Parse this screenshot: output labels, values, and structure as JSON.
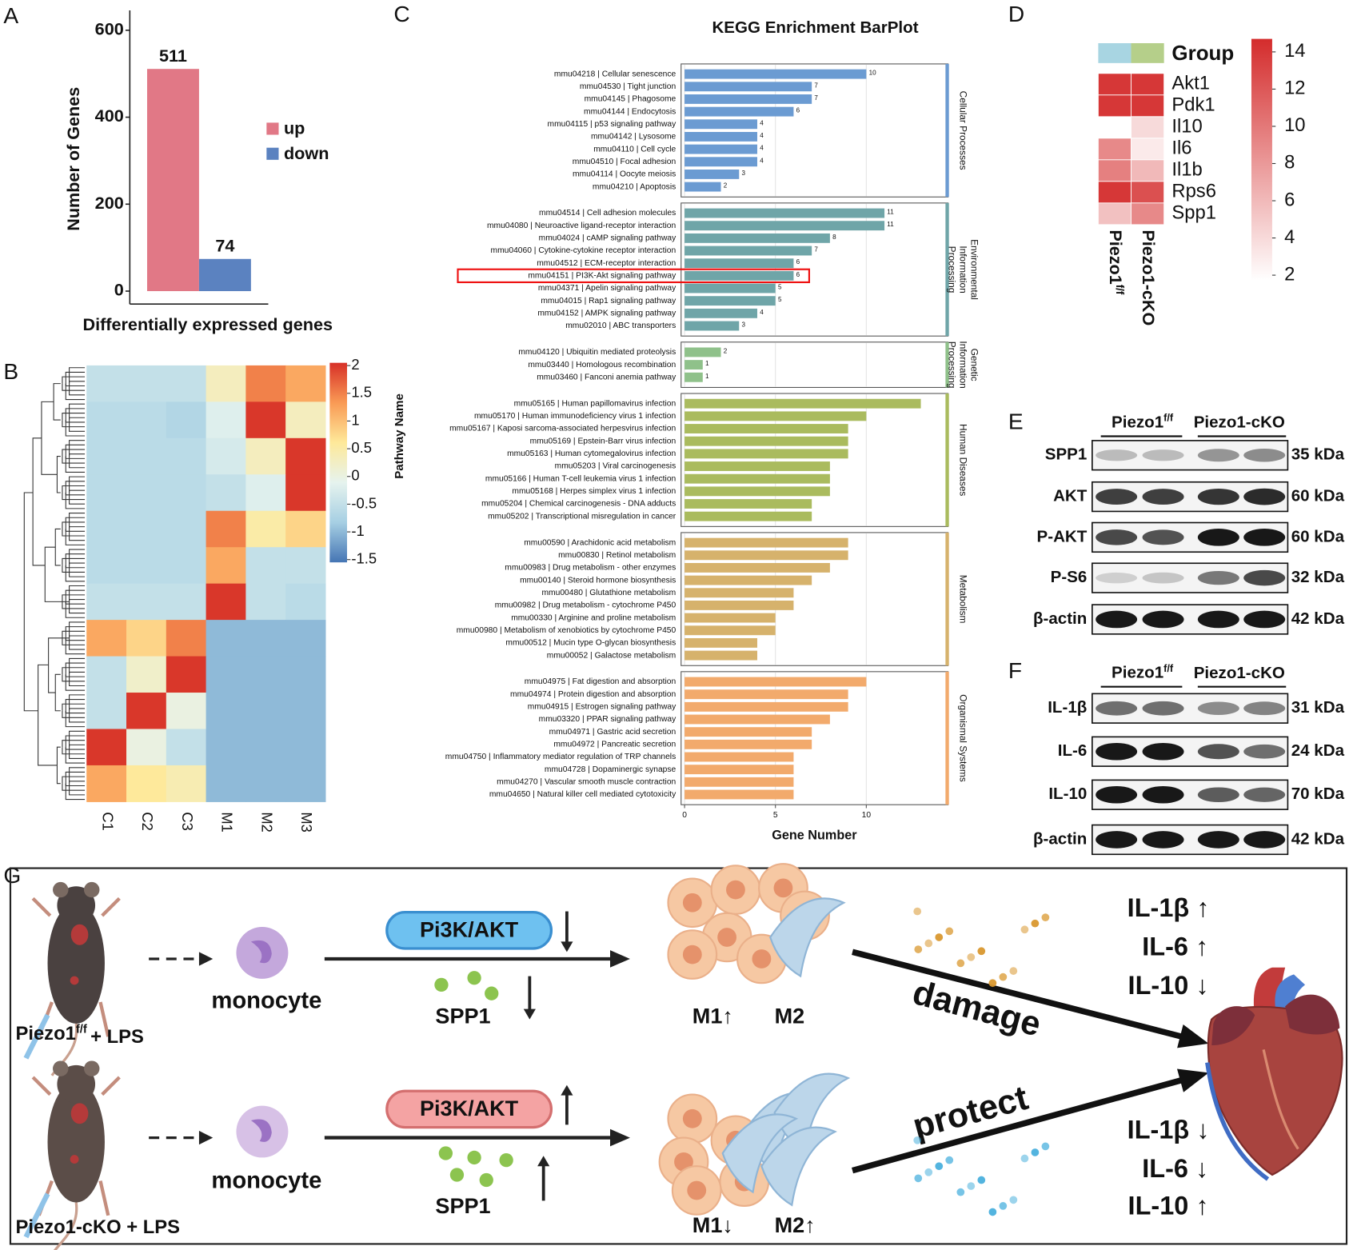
{
  "panel_letters": [
    "A",
    "B",
    "C",
    "D",
    "E",
    "F",
    "G"
  ],
  "chart_data": [
    {
      "type": "bar",
      "y_label": "Number of Genes",
      "x_label": "Differentially expressed genes",
      "categories": [
        "up",
        "down"
      ],
      "values": [
        511,
        74
      ],
      "colors": [
        "#e17886",
        "#5b82c0"
      ],
      "ylim": [
        0,
        600
      ],
      "yticks": [
        0,
        200,
        400,
        600
      ],
      "legend": "right"
    },
    {
      "type": "heatmap",
      "columns": [
        "C1",
        "C2",
        "C3",
        "M1",
        "M2",
        "M3"
      ],
      "values": [
        [
          -0.5,
          -0.5,
          -0.5,
          0.3,
          1.5,
          1.2
        ],
        [
          -0.6,
          -0.6,
          -0.7,
          -0.2,
          2,
          0.3
        ],
        [
          -0.6,
          -0.6,
          -0.6,
          -0.3,
          0.3,
          2
        ],
        [
          -0.6,
          -0.6,
          -0.6,
          -0.5,
          -0.2,
          2
        ],
        [
          -0.6,
          -0.6,
          -0.6,
          1.5,
          0.5,
          0.8
        ],
        [
          -0.6,
          -0.6,
          -0.6,
          1.2,
          -0.5,
          -0.5
        ],
        [
          -0.5,
          -0.5,
          -0.5,
          2,
          -0.5,
          -0.6
        ],
        [
          1.2,
          0.8,
          1.5,
          -1,
          -1,
          -1
        ],
        [
          -0.5,
          0.2,
          2,
          -1,
          -1,
          -1
        ],
        [
          -0.5,
          2,
          0,
          -1,
          -1,
          -1
        ],
        [
          2,
          0,
          -0.5,
          -1,
          -1,
          -1
        ],
        [
          1.2,
          0.6,
          0.4,
          -1,
          -1,
          -1
        ]
      ],
      "clim": [
        -1.55,
        2.05
      ],
      "cticks": [
        2,
        1.5,
        1,
        0.5,
        0,
        -0.5,
        -1,
        -1.5
      ],
      "colormap": [
        "#4575b4",
        "#a6cfe3",
        "#e6f3ee",
        "#fee99a",
        "#f99a55",
        "#d73027"
      ],
      "dendrogram": true
    },
    {
      "type": "hbar",
      "title": "KEGG Enrichment BarPlot",
      "x_label": "Gene Number",
      "y_label": "Pathway Name",
      "xlim": [
        0,
        14.5
      ],
      "xticks": [
        0,
        5,
        10
      ],
      "grid": true,
      "groups": [
        {
          "label_lines": [
            "Cellular Processes"
          ],
          "color": "#6b9bd2",
          "data_labels": true,
          "categories": [
            "mmu04218 | Cellular senescence",
            "mmu04530 | Tight junction",
            "mmu04145 | Phagosome",
            "mmu04144 | Endocytosis",
            "mmu04115 | p53 signaling pathway",
            "mmu04142 | Lysosome",
            "mmu04110 | Cell cycle",
            "mmu04510 | Focal adhesion",
            "mmu04114 | Oocyte meiosis",
            "mmu04210 | Apoptosis"
          ],
          "values": [
            10,
            7,
            7,
            6,
            4,
            4,
            4,
            4,
            3,
            2
          ]
        },
        {
          "label_lines": [
            "Environmental",
            "Information",
            "Processing"
          ],
          "color": "#6fa5a8",
          "data_labels": true,
          "highlight_index": 5,
          "categories": [
            "mmu04514 | Cell adhesion molecules",
            "mmu04080 | Neuroactive ligand-receptor interaction",
            "mmu04024 | cAMP signaling pathway",
            "mmu04060 | Cytokine-cytokine receptor interaction",
            "mmu04512 | ECM-receptor interaction",
            "mmu04151 | PI3K-Akt signaling pathway",
            "mmu04371 | Apelin signaling pathway",
            "mmu04015 | Rap1 signaling pathway",
            "mmu04152 | AMPK signaling pathway",
            "mmu02010 | ABC transporters"
          ],
          "values": [
            11,
            11,
            8,
            7,
            6,
            6,
            5,
            5,
            4,
            3
          ]
        },
        {
          "label_lines": [
            "Genetic",
            "Information",
            "Processing"
          ],
          "color": "#8fc18a",
          "data_labels": true,
          "categories": [
            "mmu04120 | Ubiquitin mediated proteolysis",
            "mmu03440 | Homologous recombination",
            "mmu03460 | Fanconi anemia pathway"
          ],
          "values": [
            2,
            1,
            1
          ]
        },
        {
          "label_lines": [
            "Human Diseases"
          ],
          "color": "#aabb5e",
          "data_labels": false,
          "categories": [
            "mmu05165 | Human papillomavirus infection",
            "mmu05170 | Human immunodeficiency virus 1 infection",
            "mmu05167 | Kaposi sarcoma-associated herpesvirus infection",
            "mmu05169 | Epstein-Barr virus infection",
            "mmu05163 | Human cytomegalovirus infection",
            "mmu05203 | Viral carcinogenesis",
            "mmu05166 | Human T-cell leukemia virus 1 infection",
            "mmu05168 | Herpes simplex virus 1 infection",
            "mmu05204 | Chemical carcinogenesis - DNA adducts",
            "mmu05202 | Transcriptional misregulation in cancer"
          ],
          "values": [
            13,
            10,
            9,
            9,
            9,
            8,
            8,
            8,
            7,
            7
          ]
        },
        {
          "label_lines": [
            "Metabolism"
          ],
          "color": "#d6b26c",
          "data_labels": false,
          "categories": [
            "mmu00590 | Arachidonic acid metabolism",
            "mmu00830 | Retinol metabolism",
            "mmu00983 | Drug metabolism - other enzymes",
            "mmu00140 | Steroid hormone biosynthesis",
            "mmu00480 | Glutathione metabolism",
            "mmu00982 | Drug metabolism - cytochrome P450",
            "mmu00330 | Arginine and proline metabolism",
            "mmu00980 | Metabolism of xenobiotics by cytochrome P450",
            "mmu00512 | Mucin type O-glycan biosynthesis",
            "mmu00052 | Galactose metabolism"
          ],
          "values": [
            9,
            9,
            8,
            7,
            6,
            6,
            5,
            5,
            4,
            4
          ]
        },
        {
          "label_lines": [
            "Organismal Systems"
          ],
          "color": "#f2aa6c",
          "data_labels": false,
          "categories": [
            "mmu04975 | Fat digestion and absorption",
            "mmu04974 | Protein digestion and absorption",
            "mmu04915 | Estrogen signaling pathway",
            "mmu03320 | PPAR signaling pathway",
            "mmu04971 | Gastric acid secretion",
            "mmu04972 | Pancreatic secretion",
            "mmu04750 | Inflammatory mediator regulation of TRP channels",
            "mmu04728 | Dopaminergic synapse",
            "mmu04270 | Vascular smooth muscle contraction",
            "mmu04650 | Natural killer cell mediated cytotoxicity"
          ],
          "values": [
            10,
            9,
            9,
            8,
            7,
            7,
            6,
            6,
            6,
            6
          ]
        }
      ]
    },
    {
      "type": "heatmap",
      "group_label": "Group",
      "group_colors": [
        "#a8d5e2",
        "#b5cf8a"
      ],
      "columns": [
        {
          "text": "Piezo1",
          "sup": "f/f"
        },
        {
          "text": "Piezo1-cKO"
        }
      ],
      "rows": [
        "Akt1",
        "Pdk1",
        "Il10",
        "Il6",
        "Il1b",
        "Rps6",
        "Spp1"
      ],
      "values": [
        [
          14,
          14
        ],
        [
          14,
          14
        ],
        [
          null,
          4
        ],
        [
          9,
          3
        ],
        [
          9.5,
          6
        ],
        [
          14,
          12.5
        ],
        [
          5.5,
          9
        ]
      ],
      "clim": [
        1.7,
        14.7
      ],
      "cticks": [
        14,
        12,
        10,
        8,
        6,
        4,
        2
      ],
      "colormap": [
        "#ffffff",
        "#d42c2c"
      ]
    }
  ],
  "blots": [
    {
      "groups": [
        {
          "text": "Piezo1",
          "sup": "f/f"
        },
        {
          "text": "Piezo1-cKO"
        }
      ],
      "rows": [
        {
          "name": "SPP1",
          "size": "35 kDa"
        },
        {
          "name": "AKT",
          "size": "60 kDa"
        },
        {
          "name": "P-AKT",
          "size": "60 kDa"
        },
        {
          "name": "P-S6",
          "size": "32 kDa"
        },
        {
          "name": "β-actin",
          "size": "42 kDa"
        }
      ]
    },
    {
      "groups": [
        {
          "text": "Piezo1",
          "sup": "f/f"
        },
        {
          "text": "Piezo1-cKO"
        }
      ],
      "rows": [
        {
          "name": "IL-1β",
          "size": "31 kDa"
        },
        {
          "name": "IL-6",
          "size": "24 kDa"
        },
        {
          "name": "IL-10",
          "size": "70 kDa"
        },
        {
          "name": "β-actin",
          "size": "42 kDa"
        }
      ]
    }
  ],
  "schematic": {
    "rows": [
      {
        "condition": {
          "text": "Piezo1",
          "sup": "f/f",
          "after": "+ LPS"
        },
        "cell": "monocyte",
        "pathway": "Pi3K/AKT",
        "factor": "SPP1",
        "m1": "M1↑",
        "m2": "M2",
        "effect": "damage",
        "cytokines": [
          "IL-1β ↑",
          "IL-6 ↑",
          "IL-10 ↓"
        ]
      },
      {
        "condition": {
          "text": "Piezo1-cKO + LPS"
        },
        "cell": "monocyte",
        "pathway": "Pi3K/AKT",
        "factor": "SPP1",
        "m1": "M1↓",
        "m2": "M2↑",
        "effect": "protect",
        "cytokines": [
          "IL-1β ↓",
          "IL-6 ↓",
          "IL-10 ↑"
        ]
      }
    ]
  }
}
